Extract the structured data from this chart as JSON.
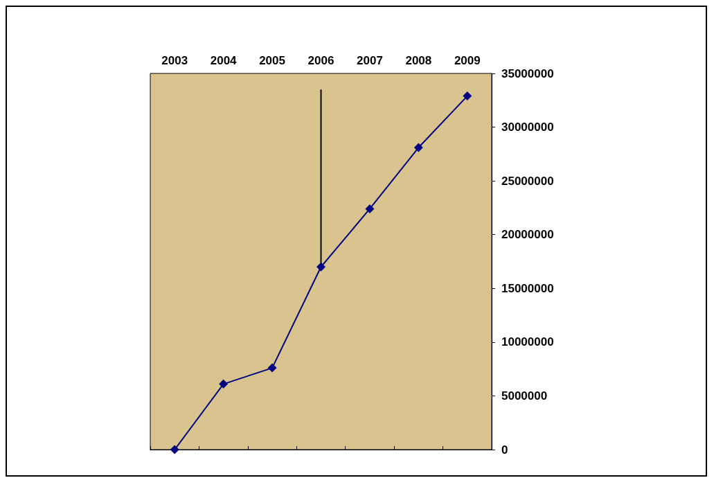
{
  "chart_data": {
    "type": "line",
    "categories": [
      "2003",
      "2004",
      "2005",
      "2006",
      "2007",
      "2008",
      "2009"
    ],
    "series": [
      {
        "color": "#000080",
        "values": [
          0,
          6100000,
          7600000,
          17000000,
          22400000,
          28100000,
          32900000
        ],
        "marker": "diamond",
        "errors": [
          null,
          null,
          null,
          [
            17000000,
            33500000
          ],
          null,
          null,
          null
        ]
      }
    ],
    "ylim": [
      0,
      35000000
    ],
    "yticks": [
      0,
      5000000,
      10000000,
      15000000,
      20000000,
      25000000,
      30000000,
      35000000
    ],
    "grid": false,
    "line_style": "solid"
  }
}
